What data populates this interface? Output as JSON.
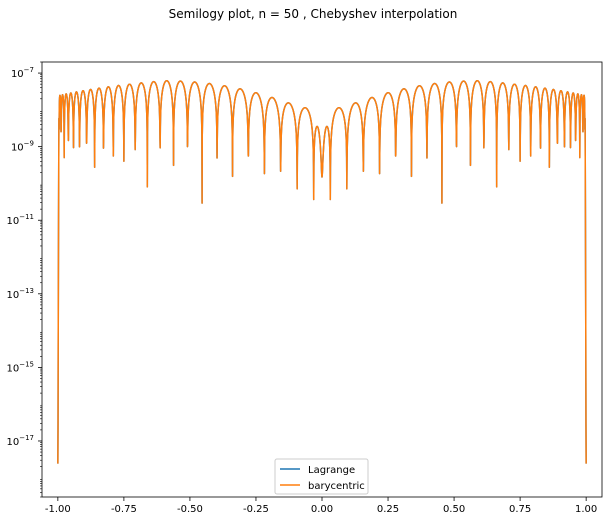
{
  "chart_data": {
    "type": "line",
    "title": "Semilogy plot, n = 50 , Chebyshev interpolation",
    "xlabel": "",
    "ylabel": "",
    "xlim": [
      -1.06,
      1.06
    ],
    "ylim": [
      3e-19,
      2e-07
    ],
    "y_scale": "log",
    "grid": false,
    "legend_position": "bottom-center",
    "x_ticks": [
      "-1.00",
      "-0.75",
      "-0.50",
      "-0.25",
      "0.00",
      "0.25",
      "0.50",
      "0.75",
      "1.00"
    ],
    "x_tick_values": [
      -1.0,
      -0.75,
      -0.5,
      -0.25,
      0.0,
      0.25,
      0.5,
      0.75,
      1.0
    ],
    "y_ticks": [
      {
        "base": "10",
        "exp": "−7",
        "value": 1e-07
      },
      {
        "base": "10",
        "exp": "−9",
        "value": 1e-09
      },
      {
        "base": "10",
        "exp": "−11",
        "value": 1e-11
      },
      {
        "base": "10",
        "exp": "−13",
        "value": 1e-13
      },
      {
        "base": "10",
        "exp": "−15",
        "value": 1e-15
      },
      {
        "base": "10",
        "exp": "−17",
        "value": 1e-17
      }
    ],
    "n_nodes": 50,
    "curve_description": "absolute interpolation error |f(x) - p(x)|, zero at the 50 Chebyshev nodes; lobe peaks about 1e-8 near the ends rising to about 6e-8 near x = ±0.3, minimum about 8e-10 at x = 0, drops to about 1e-18 at x = ±1",
    "series": [
      {
        "name": "Lagrange",
        "color": "#1f77b4"
      },
      {
        "name": "barycentric",
        "color": "#ff7f0e"
      }
    ]
  }
}
